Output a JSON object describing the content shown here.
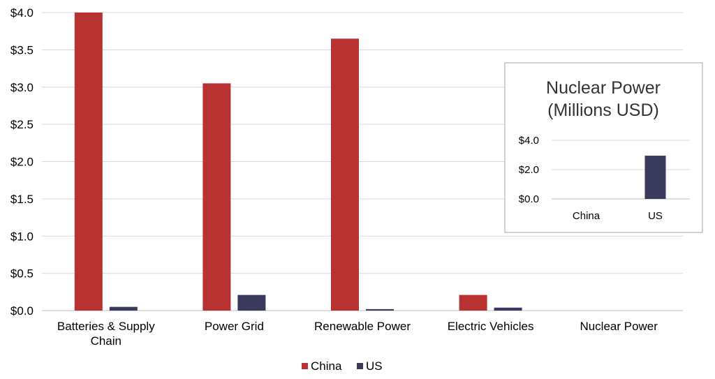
{
  "colors": {
    "China": "#b83232",
    "US": "#3a3a5c",
    "grid": "#d9d9d9",
    "axis": "#bfbfbf"
  },
  "chart_data": [
    {
      "type": "bar",
      "categories": [
        "Batteries & Supply Chain",
        "Power Grid",
        "Renewable Power",
        "Electric Vehicles",
        "Nuclear Power"
      ],
      "category_lines": [
        [
          "Batteries & Supply",
          "Chain"
        ],
        [
          "Power Grid"
        ],
        [
          "Renewable Power"
        ],
        [
          "Electric Vehicles"
        ],
        [
          "Nuclear Power"
        ]
      ],
      "series": [
        {
          "name": "China",
          "values": [
            4.0,
            3.05,
            3.65,
            0.21,
            0.0
          ]
        },
        {
          "name": "US",
          "values": [
            0.05,
            0.21,
            0.02,
            0.04,
            0.0
          ]
        }
      ],
      "ylim": [
        0,
        4.0
      ],
      "yticks": [
        "$0.0",
        "$0.5",
        "$1.0",
        "$1.5",
        "$2.0",
        "$2.5",
        "$3.0",
        "$3.5",
        "$4.0"
      ],
      "grid": true,
      "legend": "bottom-center"
    },
    {
      "type": "bar",
      "title_lines": [
        "Nuclear Power",
        "(Millions USD)"
      ],
      "categories": [
        "China",
        "US"
      ],
      "values": [
        0.0,
        2.95
      ],
      "ylim": [
        0,
        4.0
      ],
      "yticks": [
        "$0.0",
        "$2.0",
        "$4.0"
      ],
      "grid": true
    }
  ]
}
